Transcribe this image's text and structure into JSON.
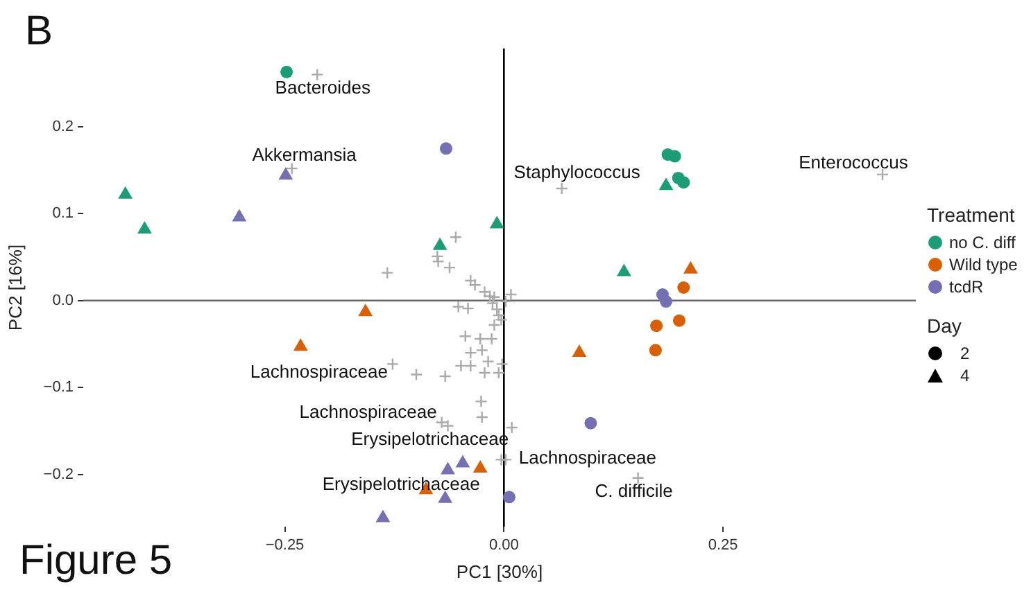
{
  "chart_data": {
    "type": "scatter",
    "xlabel": "PC1 [30%]",
    "ylabel": "PC2 [16%]",
    "legend_title": "Treatment",
    "legend": "right",
    "grid": false,
    "xlim": [
      -0.48,
      0.47
    ],
    "ylim": [
      -0.26,
      0.29
    ],
    "xticks": [
      {
        "value": -0.25,
        "label": "−0.25"
      },
      {
        "value": 0,
        "label": "0.00"
      },
      {
        "value": 0.25,
        "label": "0.25"
      }
    ],
    "yticks": [
      {
        "value": -0.2,
        "label": "−0.2"
      },
      {
        "value": -0.1,
        "label": "−0.1"
      },
      {
        "value": 0,
        "label": "0.0"
      },
      {
        "value": 0.1,
        "label": "0.1"
      },
      {
        "value": 0.2,
        "label": "0.2"
      }
    ],
    "ref_lines": [
      {
        "axis": "x",
        "value": 0,
        "color": "#000000"
      },
      {
        "axis": "y",
        "value": 0,
        "color": "#666666"
      }
    ],
    "series": [
      {
        "name": "no C. diff",
        "color": "#1b9e77",
        "marker": "circle",
        "x": [
          -0.248,
          0.187,
          0.195,
          0.199,
          0.205
        ],
        "values": [
          0.263,
          0.168,
          0.166,
          0.141,
          0.136
        ]
      },
      {
        "name": "Wild type",
        "color": "#d95f02",
        "marker": "circle",
        "x": [
          0.205,
          0.174,
          0.2,
          0.173
        ],
        "values": [
          0.015,
          -0.029,
          -0.023,
          -0.057
        ]
      },
      {
        "name": "tcdR",
        "color": "#7570b3",
        "marker": "circle",
        "x": [
          -0.066,
          0.181,
          0.185,
          0.099,
          0.006
        ],
        "values": [
          0.175,
          0.007,
          -0.001,
          -0.141,
          -0.226
        ]
      },
      {
        "color": "#1b9e77",
        "marker": "triangle",
        "x": [
          -0.432,
          -0.41,
          -0.073,
          -0.008,
          0.185,
          0.137
        ],
        "values": [
          0.122,
          0.082,
          0.063,
          0.088,
          0.132,
          0.033
        ]
      },
      {
        "color": "#d95f02",
        "marker": "triangle",
        "x": [
          0.213,
          0.086,
          -0.158,
          -0.232,
          -0.027,
          -0.089
        ],
        "values": [
          0.036,
          -0.06,
          -0.013,
          -0.053,
          -0.193,
          -0.218
        ]
      },
      {
        "color": "#7570b3",
        "marker": "triangle",
        "x": [
          -0.249,
          -0.302,
          -0.064,
          -0.047,
          -0.067,
          -0.138
        ],
        "values": [
          0.144,
          0.096,
          -0.195,
          -0.187,
          -0.228,
          -0.25
        ]
      },
      {
        "color": "#aaaaaa",
        "marker": "cross",
        "x": [
          -0.213,
          -0.242,
          0.066,
          0.432,
          0.153,
          0.002,
          -0.127,
          -0.071,
          -0.064,
          -0.003,
          0.009,
          -0.133,
          -0.055,
          -0.076,
          -0.075,
          -0.062,
          -0.038,
          -0.033,
          -0.022,
          -0.011,
          0.008,
          0.002,
          -0.052,
          -0.041,
          -0.006,
          -0.011,
          -0.044,
          -0.027,
          -0.014,
          -0.038,
          -0.025,
          -0.049,
          -0.038,
          -0.022,
          -0.006,
          -0.002,
          -0.018,
          -0.1,
          -0.067,
          -0.026,
          -0.025,
          -0.016,
          -0.008,
          -0.003,
          -0.013
        ],
        "values": [
          0.26,
          0.152,
          0.129,
          0.145,
          -0.204,
          -0.183,
          -0.073,
          -0.14,
          -0.144,
          -0.183,
          -0.146,
          0.032,
          0.073,
          0.051,
          0.045,
          0.038,
          0.023,
          0.018,
          0.01,
          0.004,
          0.007,
          -0.001,
          -0.007,
          -0.009,
          -0.017,
          -0.028,
          -0.041,
          -0.044,
          -0.044,
          -0.06,
          -0.057,
          -0.075,
          -0.075,
          -0.083,
          -0.083,
          -0.073,
          -0.07,
          -0.085,
          -0.087,
          -0.116,
          -0.134,
          0.005,
          -0.01,
          -0.022,
          -0.003
        ]
      },
      {
        "name": "2",
        "color": "#000000",
        "marker": "circle"
      },
      {
        "name": "4",
        "color": "#000000",
        "marker": "triangle"
      }
    ],
    "annotations": [
      "B",
      "Figure 5",
      "Day",
      {
        "text": "Bacteroides",
        "x": -0.213,
        "y": 0.26
      },
      {
        "text": "Akkermansia",
        "x": -0.242,
        "y": 0.152
      },
      {
        "text": "Staphylococcus",
        "x": 0.066,
        "y": 0.129
      },
      {
        "text": "Enterococcus",
        "x": 0.432,
        "y": 0.145
      },
      {
        "text": "Lachnospiraceae",
        "x": -0.127,
        "y": -0.073
      },
      {
        "text": "Lachnospiraceae",
        "x": -0.071,
        "y": -0.14
      },
      {
        "text": "Erysipelotrichaceae",
        "x": 0.009,
        "y": -0.146
      },
      {
        "text": "Lachnospiraceae",
        "x": 0.002,
        "y": -0.183
      },
      {
        "text": "Erysipelotrichaceae",
        "x": -0.027,
        "y": -0.193
      },
      {
        "text": "C. difficile",
        "x": 0.153,
        "y": -0.204
      }
    ]
  }
}
